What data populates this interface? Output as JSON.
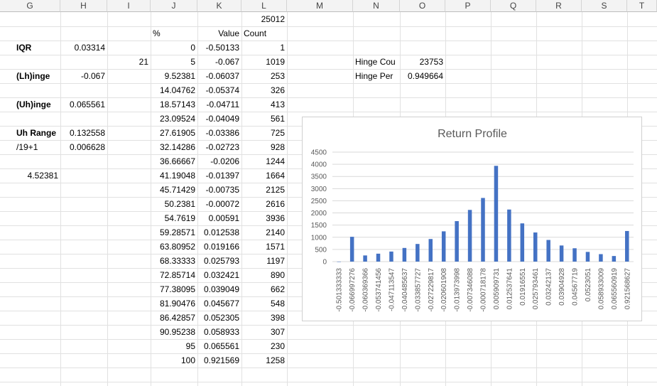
{
  "columns": [
    "G",
    "H",
    "I",
    "J",
    "K",
    "L",
    "M",
    "N",
    "O",
    "P",
    "Q",
    "R",
    "S",
    "T"
  ],
  "cells": {
    "l_top": "25012",
    "hdr_pct": "%",
    "hdr_value": "Value",
    "hdr_count": "Count",
    "iqr_label": "IQR",
    "iqr_value": "0.03314",
    "i21": "21",
    "lhinge_label": "(Lh)inge",
    "lhinge_value": "-0.067",
    "uhinge_label": "(Uh)inge",
    "uhinge_value": "0.065561",
    "uhrange_label": "Uh Range",
    "uhrange_value": "0.132558",
    "div_label": "/19+1",
    "div_value": "0.006628",
    "g_value": "4.52381",
    "hinge_count_label": "Hinge Cou",
    "hinge_count_value": "23753",
    "hinge_per_label": "Hinge Per",
    "hinge_per_value": "0.949664"
  },
  "table": [
    {
      "pct": "0",
      "value": "-0.50133",
      "count": "1"
    },
    {
      "pct": "5",
      "value": "-0.067",
      "count": "1019"
    },
    {
      "pct": "9.52381",
      "value": "-0.06037",
      "count": "253"
    },
    {
      "pct": "14.04762",
      "value": "-0.05374",
      "count": "326"
    },
    {
      "pct": "18.57143",
      "value": "-0.04711",
      "count": "413"
    },
    {
      "pct": "23.09524",
      "value": "-0.04049",
      "count": "561"
    },
    {
      "pct": "27.61905",
      "value": "-0.03386",
      "count": "725"
    },
    {
      "pct": "32.14286",
      "value": "-0.02723",
      "count": "928"
    },
    {
      "pct": "36.66667",
      "value": "-0.0206",
      "count": "1244"
    },
    {
      "pct": "41.19048",
      "value": "-0.01397",
      "count": "1664"
    },
    {
      "pct": "45.71429",
      "value": "-0.00735",
      "count": "2125"
    },
    {
      "pct": "50.2381",
      "value": "-0.00072",
      "count": "2616"
    },
    {
      "pct": "54.7619",
      "value": "0.00591",
      "count": "3936"
    },
    {
      "pct": "59.28571",
      "value": "0.012538",
      "count": "2140"
    },
    {
      "pct": "63.80952",
      "value": "0.019166",
      "count": "1571"
    },
    {
      "pct": "68.33333",
      "value": "0.025793",
      "count": "1197"
    },
    {
      "pct": "72.85714",
      "value": "0.032421",
      "count": "890"
    },
    {
      "pct": "77.38095",
      "value": "0.039049",
      "count": "662"
    },
    {
      "pct": "81.90476",
      "value": "0.045677",
      "count": "548"
    },
    {
      "pct": "86.42857",
      "value": "0.052305",
      "count": "398"
    },
    {
      "pct": "90.95238",
      "value": "0.058933",
      "count": "307"
    },
    {
      "pct": "95",
      "value": "0.065561",
      "count": "230"
    },
    {
      "pct": "100",
      "value": "0.921569",
      "count": "1258"
    }
  ],
  "chart_data": {
    "type": "bar",
    "title": "Return Profile",
    "xlabel": "",
    "ylabel": "",
    "ylim": [
      0,
      4500
    ],
    "yticks": [
      "0",
      "500",
      "1000",
      "1500",
      "2000",
      "2500",
      "3000",
      "3500",
      "4000",
      "4500"
    ],
    "grid": true,
    "legend": "none",
    "bar_color": "#4472c4",
    "categories": [
      "-0.501333333",
      "-0.066997276",
      "-0.060369366",
      "-0.053741456",
      "-0.047113547",
      "-0.040485637",
      "-0.033857727",
      "-0.027229817",
      "-0.020601908",
      "-0.013973998",
      "-0.007346088",
      "-0.000718178",
      "0.005909731",
      "0.012537641",
      "0.01916551",
      "0.025793461",
      "0.03242137",
      "0.03904928",
      "0.04567719",
      "0.0523051",
      "0.058933009",
      "0.065560919",
      "0.921568627"
    ],
    "values": [
      1,
      1019,
      253,
      326,
      413,
      561,
      725,
      928,
      1244,
      1664,
      2125,
      2616,
      3936,
      2140,
      1571,
      1197,
      890,
      662,
      548,
      398,
      307,
      230,
      1258
    ]
  }
}
